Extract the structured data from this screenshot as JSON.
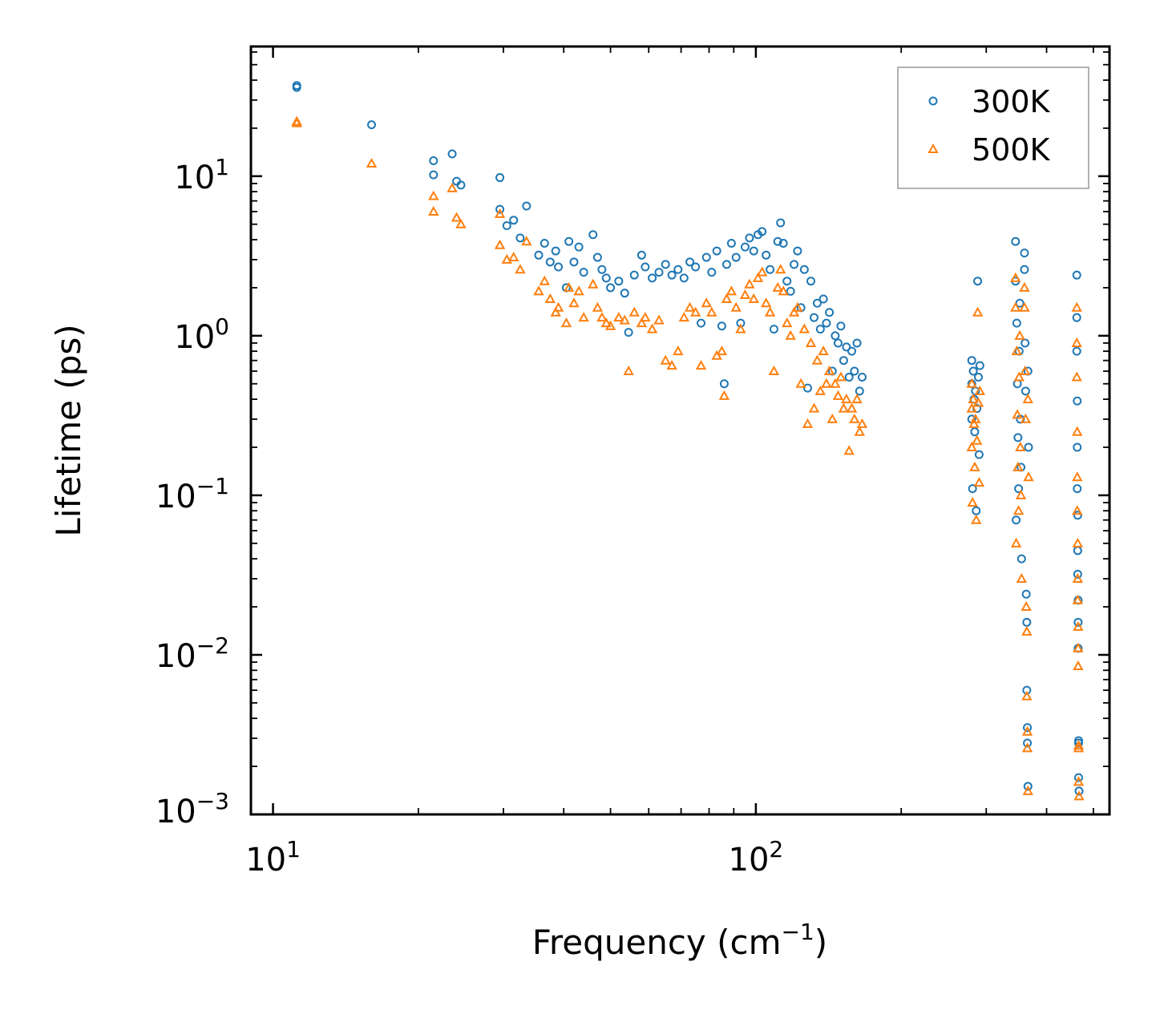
{
  "chart_data": {
    "type": "scatter",
    "title": "",
    "xlabel": {
      "base": "Frequency (cm",
      "sup": "−1",
      "tail": ")"
    },
    "ylabel": "Lifetime (ps)",
    "xscale": "log",
    "yscale": "log",
    "xlim": [
      9,
      540
    ],
    "ylim": [
      0.001,
      65
    ],
    "x_ticks": [
      {
        "value": 10,
        "base": "10",
        "exp": "1"
      },
      {
        "value": 100,
        "base": "10",
        "exp": "2"
      }
    ],
    "y_ticks": [
      {
        "value": 0.001,
        "base": "10",
        "exp": "−3"
      },
      {
        "value": 0.01,
        "base": "10",
        "exp": "−2"
      },
      {
        "value": 0.1,
        "base": "10",
        "exp": "−1"
      },
      {
        "value": 1,
        "base": "10",
        "exp": "0"
      },
      {
        "value": 10,
        "base": "10",
        "exp": "1"
      }
    ],
    "grid": false,
    "legend_position": "top-right",
    "series": [
      {
        "name": "300K",
        "marker": "circle",
        "color": "#1f77b4",
        "points": [
          [
            11.2,
            37
          ],
          [
            11.2,
            36
          ],
          [
            16.0,
            21
          ],
          [
            21.5,
            12.5
          ],
          [
            21.5,
            10.2
          ],
          [
            23.5,
            13.8
          ],
          [
            24.0,
            9.3
          ],
          [
            24.5,
            8.8
          ],
          [
            29.5,
            9.8
          ],
          [
            29.5,
            6.2
          ],
          [
            30.5,
            4.9
          ],
          [
            31.5,
            5.3
          ],
          [
            32.5,
            4.1
          ],
          [
            33.5,
            6.5
          ],
          [
            35.5,
            3.2
          ],
          [
            36.5,
            3.8
          ],
          [
            37.5,
            2.9
          ],
          [
            38.5,
            3.4
          ],
          [
            39.0,
            2.7
          ],
          [
            40.5,
            2.0
          ],
          [
            41.0,
            3.9
          ],
          [
            42.0,
            2.9
          ],
          [
            43.0,
            3.6
          ],
          [
            44.0,
            2.5
          ],
          [
            46.0,
            4.3
          ],
          [
            47.0,
            3.1
          ],
          [
            48.0,
            2.6
          ],
          [
            49.0,
            2.3
          ],
          [
            50.0,
            2.0
          ],
          [
            52.0,
            2.2
          ],
          [
            53.5,
            1.85
          ],
          [
            54.5,
            1.05
          ],
          [
            56.0,
            2.4
          ],
          [
            58.0,
            3.2
          ],
          [
            59.0,
            2.7
          ],
          [
            61.0,
            2.3
          ],
          [
            63.0,
            2.5
          ],
          [
            65.0,
            2.8
          ],
          [
            67.0,
            2.4
          ],
          [
            69.0,
            2.6
          ],
          [
            71.0,
            2.3
          ],
          [
            73.0,
            2.9
          ],
          [
            75.0,
            2.7
          ],
          [
            77.0,
            1.2
          ],
          [
            79.0,
            3.1
          ],
          [
            81.0,
            2.5
          ],
          [
            83.0,
            3.4
          ],
          [
            85.0,
            1.15
          ],
          [
            86.0,
            0.5
          ],
          [
            87.0,
            2.8
          ],
          [
            89.0,
            3.8
          ],
          [
            91.0,
            3.1
          ],
          [
            93.0,
            1.2
          ],
          [
            95.0,
            3.6
          ],
          [
            97.0,
            4.1
          ],
          [
            99.0,
            3.4
          ],
          [
            101.0,
            4.3
          ],
          [
            103.0,
            4.5
          ],
          [
            105.0,
            3.2
          ],
          [
            107.0,
            2.6
          ],
          [
            109.0,
            1.1
          ],
          [
            111.0,
            3.9
          ],
          [
            112.5,
            5.1
          ],
          [
            114.0,
            3.8
          ],
          [
            116.0,
            2.2
          ],
          [
            118.0,
            1.9
          ],
          [
            120.0,
            2.8
          ],
          [
            122.0,
            3.4
          ],
          [
            124.0,
            1.5
          ],
          [
            126.0,
            2.6
          ],
          [
            128.0,
            0.47
          ],
          [
            130.0,
            2.2
          ],
          [
            132.0,
            1.3
          ],
          [
            134.0,
            1.6
          ],
          [
            136.0,
            1.1
          ],
          [
            138.0,
            1.7
          ],
          [
            140.0,
            1.2
          ],
          [
            142.0,
            1.4
          ],
          [
            144.0,
            0.6
          ],
          [
            146.0,
            1.0
          ],
          [
            148.0,
            0.9
          ],
          [
            150.0,
            1.15
          ],
          [
            152.0,
            0.7
          ],
          [
            154.0,
            0.85
          ],
          [
            156.0,
            0.55
          ],
          [
            158.0,
            0.8
          ],
          [
            160.0,
            0.6
          ],
          [
            162.0,
            0.9
          ],
          [
            164.0,
            0.45
          ],
          [
            166.0,
            0.55
          ],
          [
            280,
            0.7
          ],
          [
            280,
            0.5
          ],
          [
            280,
            0.3
          ],
          [
            281,
            0.11
          ],
          [
            282,
            0.6
          ],
          [
            283,
            0.4
          ],
          [
            284,
            0.25
          ],
          [
            285,
            0.45
          ],
          [
            286,
            0.08
          ],
          [
            287,
            0.35
          ],
          [
            288,
            2.2
          ],
          [
            289,
            0.55
          ],
          [
            290,
            0.18
          ],
          [
            291,
            0.65
          ],
          [
            345,
            3.9
          ],
          [
            345,
            2.2
          ],
          [
            346,
            0.07
          ],
          [
            347,
            1.2
          ],
          [
            348,
            0.5
          ],
          [
            349,
            0.23
          ],
          [
            350,
            0.11
          ],
          [
            351,
            0.8
          ],
          [
            352,
            1.6
          ],
          [
            353,
            0.3
          ],
          [
            354,
            0.15
          ],
          [
            355,
            0.04
          ],
          [
            360,
            3.3
          ],
          [
            360,
            2.6
          ],
          [
            361,
            0.9
          ],
          [
            362,
            0.45
          ],
          [
            363,
            0.024
          ],
          [
            364,
            0.016
          ],
          [
            364,
            0.006
          ],
          [
            365,
            0.0035
          ],
          [
            365,
            0.0028
          ],
          [
            366,
            0.0015
          ],
          [
            366,
            0.6
          ],
          [
            367,
            0.2
          ],
          [
            462,
            2.4
          ],
          [
            462,
            1.3
          ],
          [
            462,
            0.8
          ],
          [
            463,
            0.39
          ],
          [
            463,
            0.2
          ],
          [
            463,
            0.11
          ],
          [
            464,
            0.075
          ],
          [
            464,
            0.045
          ],
          [
            464,
            0.032
          ],
          [
            465,
            0.022
          ],
          [
            465,
            0.016
          ],
          [
            465,
            0.011
          ],
          [
            466,
            0.0029
          ],
          [
            466,
            0.0028
          ],
          [
            466,
            0.0017
          ],
          [
            467,
            0.0014
          ]
        ]
      },
      {
        "name": "500K",
        "marker": "triangle",
        "color": "#ff7f0e",
        "points": [
          [
            11.2,
            22
          ],
          [
            11.2,
            21.5
          ],
          [
            16.0,
            12
          ],
          [
            21.5,
            7.5
          ],
          [
            21.5,
            6.0
          ],
          [
            23.5,
            8.4
          ],
          [
            24.0,
            5.5
          ],
          [
            24.5,
            5.0
          ],
          [
            29.5,
            5.8
          ],
          [
            29.5,
            3.7
          ],
          [
            30.5,
            3.0
          ],
          [
            31.5,
            3.1
          ],
          [
            32.5,
            2.6
          ],
          [
            33.5,
            3.9
          ],
          [
            35.5,
            1.9
          ],
          [
            36.5,
            2.2
          ],
          [
            37.5,
            1.7
          ],
          [
            38.5,
            1.4
          ],
          [
            39.0,
            1.5
          ],
          [
            40.5,
            1.2
          ],
          [
            41.0,
            2.0
          ],
          [
            42.0,
            1.6
          ],
          [
            43.0,
            1.9
          ],
          [
            44.0,
            1.3
          ],
          [
            46.0,
            2.1
          ],
          [
            47.0,
            1.5
          ],
          [
            48.0,
            1.3
          ],
          [
            49.0,
            1.2
          ],
          [
            50.0,
            1.15
          ],
          [
            52.0,
            1.3
          ],
          [
            53.5,
            1.25
          ],
          [
            54.5,
            0.6
          ],
          [
            56.0,
            1.4
          ],
          [
            58.0,
            1.2
          ],
          [
            59.0,
            1.3
          ],
          [
            61.0,
            1.1
          ],
          [
            63.0,
            1.25
          ],
          [
            65.0,
            0.7
          ],
          [
            67.0,
            0.65
          ],
          [
            69.0,
            0.8
          ],
          [
            71.0,
            1.3
          ],
          [
            73.0,
            1.5
          ],
          [
            75.0,
            1.4
          ],
          [
            77.0,
            0.65
          ],
          [
            79.0,
            1.6
          ],
          [
            81.0,
            1.4
          ],
          [
            83.0,
            0.75
          ],
          [
            85.0,
            0.8
          ],
          [
            86.0,
            0.42
          ],
          [
            87.0,
            1.7
          ],
          [
            89.0,
            1.9
          ],
          [
            91.0,
            1.5
          ],
          [
            93.0,
            1.1
          ],
          [
            95.0,
            1.8
          ],
          [
            97.0,
            2.1
          ],
          [
            99.0,
            1.7
          ],
          [
            101.0,
            2.3
          ],
          [
            103.0,
            2.5
          ],
          [
            105.0,
            1.6
          ],
          [
            107.0,
            1.4
          ],
          [
            109.0,
            0.6
          ],
          [
            111.0,
            2.0
          ],
          [
            112.5,
            2.6
          ],
          [
            114.0,
            1.9
          ],
          [
            116.0,
            1.2
          ],
          [
            118.0,
            1.0
          ],
          [
            120.0,
            1.4
          ],
          [
            122.0,
            1.5
          ],
          [
            124.0,
            0.5
          ],
          [
            126.0,
            1.1
          ],
          [
            128.0,
            0.28
          ],
          [
            130.0,
            0.9
          ],
          [
            132.0,
            0.35
          ],
          [
            134.0,
            0.7
          ],
          [
            136.0,
            0.45
          ],
          [
            138.0,
            0.8
          ],
          [
            140.0,
            0.5
          ],
          [
            142.0,
            0.6
          ],
          [
            144.0,
            0.3
          ],
          [
            146.0,
            0.5
          ],
          [
            148.0,
            0.42
          ],
          [
            150.0,
            0.55
          ],
          [
            152.0,
            0.35
          ],
          [
            154.0,
            0.4
          ],
          [
            156.0,
            0.19
          ],
          [
            158.0,
            0.35
          ],
          [
            160.0,
            0.3
          ],
          [
            162.0,
            0.4
          ],
          [
            164.0,
            0.25
          ],
          [
            166.0,
            0.28
          ],
          [
            280,
            0.5
          ],
          [
            280,
            0.35
          ],
          [
            280,
            0.2
          ],
          [
            281,
            0.09
          ],
          [
            282,
            0.4
          ],
          [
            283,
            0.28
          ],
          [
            284,
            0.15
          ],
          [
            285,
            0.3
          ],
          [
            286,
            0.07
          ],
          [
            287,
            0.22
          ],
          [
            288,
            1.4
          ],
          [
            289,
            0.38
          ],
          [
            290,
            0.12
          ],
          [
            291,
            0.45
          ],
          [
            345,
            2.3
          ],
          [
            345,
            1.5
          ],
          [
            346,
            0.05
          ],
          [
            347,
            0.8
          ],
          [
            348,
            0.32
          ],
          [
            349,
            0.15
          ],
          [
            350,
            0.08
          ],
          [
            351,
            0.55
          ],
          [
            352,
            1.0
          ],
          [
            353,
            0.2
          ],
          [
            354,
            0.1
          ],
          [
            355,
            0.03
          ],
          [
            360,
            2.0
          ],
          [
            360,
            1.5
          ],
          [
            361,
            0.6
          ],
          [
            362,
            0.3
          ],
          [
            363,
            0.02
          ],
          [
            364,
            0.014
          ],
          [
            364,
            0.0055
          ],
          [
            365,
            0.0033
          ],
          [
            365,
            0.0026
          ],
          [
            366,
            0.0014
          ],
          [
            366,
            0.4
          ],
          [
            367,
            0.13
          ],
          [
            462,
            1.5
          ],
          [
            462,
            0.9
          ],
          [
            462,
            0.55
          ],
          [
            463,
            0.25
          ],
          [
            463,
            0.13
          ],
          [
            463,
            0.08
          ],
          [
            464,
            0.05
          ],
          [
            464,
            0.03
          ],
          [
            464,
            0.022
          ],
          [
            465,
            0.015
          ],
          [
            465,
            0.011
          ],
          [
            465,
            0.0085
          ],
          [
            466,
            0.0027
          ],
          [
            466,
            0.0026
          ],
          [
            466,
            0.0016
          ],
          [
            467,
            0.0013
          ]
        ]
      }
    ]
  }
}
